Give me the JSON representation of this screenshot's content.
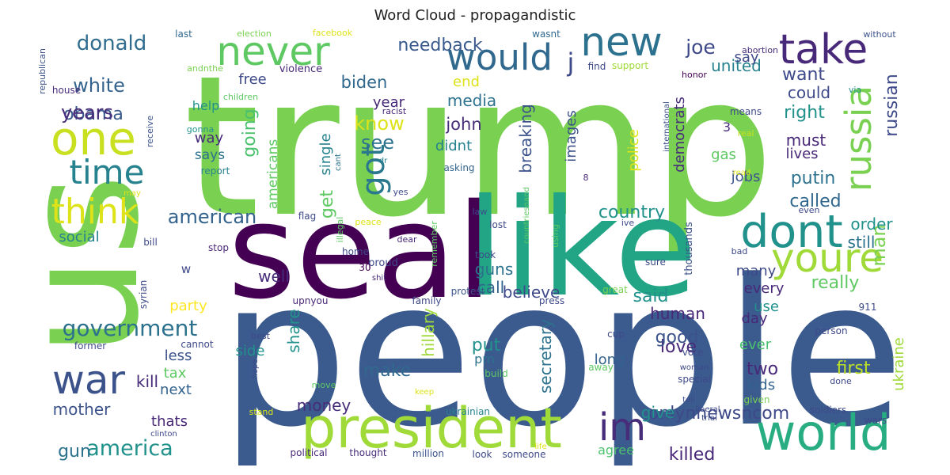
{
  "chart_data": {
    "type": "wordcloud",
    "title": "Word Cloud - propagandistic",
    "background": "#ffffff",
    "palette": [
      "#440154",
      "#3b528b",
      "#21918c",
      "#5ec962",
      "#fde725"
    ],
    "words": [
      {
        "text": "trump",
        "weight": 1.0,
        "color": "#7ad151"
      },
      {
        "text": "people",
        "weight": 0.95,
        "color": "#3b5b8f"
      },
      {
        "text": "us",
        "weight": 0.9,
        "color": "#7ad151"
      },
      {
        "text": "seal",
        "weight": 0.72,
        "color": "#440154"
      },
      {
        "text": "like",
        "weight": 0.7,
        "color": "#21a585"
      },
      {
        "text": "president",
        "weight": 0.4,
        "color": "#a0da39"
      },
      {
        "text": "world",
        "weight": 0.4,
        "color": "#27ad81"
      },
      {
        "text": "one",
        "weight": 0.38,
        "color": "#c8e020"
      },
      {
        "text": "dont",
        "weight": 0.36,
        "color": "#21918c"
      },
      {
        "text": "youre",
        "weight": 0.34,
        "color": "#a0da39"
      },
      {
        "text": "take",
        "weight": 0.34,
        "color": "#482878"
      },
      {
        "text": "new",
        "weight": 0.33,
        "color": "#2c728e"
      },
      {
        "text": "never",
        "weight": 0.32,
        "color": "#5ec962"
      },
      {
        "text": "would",
        "weight": 0.31,
        "color": "#31688e"
      },
      {
        "text": "war",
        "weight": 0.3,
        "color": "#3b528b"
      },
      {
        "text": "time",
        "weight": 0.3,
        "color": "#26828e"
      },
      {
        "text": "think",
        "weight": 0.3,
        "color": "#dde318"
      },
      {
        "text": "russia",
        "weight": 0.3,
        "color": "#7ad151"
      },
      {
        "text": "im",
        "weight": 0.28,
        "color": "#472c7a"
      },
      {
        "text": "got",
        "weight": 0.27,
        "color": "#2a788e"
      },
      {
        "text": "j",
        "weight": 0.2,
        "color": "#3e4989"
      },
      {
        "text": "government",
        "weight": 0.2,
        "color": "#2c728e"
      },
      {
        "text": "america",
        "weight": 0.18,
        "color": "#21918c"
      },
      {
        "text": "donald",
        "weight": 0.18,
        "color": "#2f6c8e"
      },
      {
        "text": "joe",
        "weight": 0.17,
        "color": "#3e4989"
      },
      {
        "text": "white",
        "weight": 0.17,
        "color": "#33638d"
      },
      {
        "text": "american",
        "weight": 0.17,
        "color": "#33638d"
      },
      {
        "text": "man",
        "weight": 0.17,
        "color": "#7ad151"
      },
      {
        "text": "obama",
        "weight": 0.16,
        "color": "#38598c"
      },
      {
        "text": "know",
        "weight": 0.16,
        "color": "#dde318"
      },
      {
        "text": "see",
        "weight": 0.16,
        "color": "#2c728e"
      },
      {
        "text": "years",
        "weight": 0.15,
        "color": "#472c7a"
      },
      {
        "text": "needback",
        "weight": 0.15,
        "color": "#38598c"
      },
      {
        "text": "going",
        "weight": 0.15,
        "color": "#4ac16d"
      },
      {
        "text": "russian",
        "weight": 0.15,
        "color": "#3e4989"
      },
      {
        "text": "want",
        "weight": 0.15,
        "color": "#3e4989"
      },
      {
        "text": "make",
        "weight": 0.15,
        "color": "#31688e"
      },
      {
        "text": "killed",
        "weight": 0.15,
        "color": "#482878"
      },
      {
        "text": "onlynnewsncom",
        "weight": 0.15,
        "color": "#3e4989"
      },
      {
        "text": "first",
        "weight": 0.15,
        "color": "#bddf26"
      },
      {
        "text": "gun",
        "weight": 0.14,
        "color": "#2c728e"
      },
      {
        "text": "biden",
        "weight": 0.14,
        "color": "#31688e"
      },
      {
        "text": "united",
        "weight": 0.14,
        "color": "#26828e"
      },
      {
        "text": "right",
        "weight": 0.14,
        "color": "#21918c"
      },
      {
        "text": "called",
        "weight": 0.14,
        "color": "#31688e"
      },
      {
        "text": "putin",
        "weight": 0.14,
        "color": "#2c728e"
      },
      {
        "text": "really",
        "weight": 0.14,
        "color": "#5ec962"
      },
      {
        "text": "said",
        "weight": 0.14,
        "color": "#21918c"
      },
      {
        "text": "country",
        "weight": 0.14,
        "color": "#21918c"
      },
      {
        "text": "love",
        "weight": 0.14,
        "color": "#482878"
      },
      {
        "text": "good",
        "weight": 0.14,
        "color": "#3b528b"
      },
      {
        "text": "two",
        "weight": 0.14,
        "color": "#482878"
      },
      {
        "text": "put",
        "weight": 0.14,
        "color": "#21918c"
      },
      {
        "text": "get",
        "weight": 0.14,
        "color": "#5ec962"
      },
      {
        "text": "john",
        "weight": 0.13,
        "color": "#472c7a"
      },
      {
        "text": "say",
        "weight": 0.13,
        "color": "#3e4989"
      },
      {
        "text": "could",
        "weight": 0.13,
        "color": "#3e4989"
      },
      {
        "text": "must",
        "weight": 0.13,
        "color": "#482878"
      },
      {
        "text": "order",
        "weight": 0.13,
        "color": "#21918c"
      },
      {
        "text": "still",
        "weight": 0.13,
        "color": "#2c728e"
      },
      {
        "text": "well",
        "weight": 0.13,
        "color": "#472c7a"
      },
      {
        "text": "call",
        "weight": 0.13,
        "color": "#33638d"
      },
      {
        "text": "kill",
        "weight": 0.13,
        "color": "#472c7a"
      },
      {
        "text": "mother",
        "weight": 0.13,
        "color": "#3b528b"
      },
      {
        "text": "money",
        "weight": 0.13,
        "color": "#472c7a"
      },
      {
        "text": "give",
        "weight": 0.13,
        "color": "#21918c"
      },
      {
        "text": "secretary",
        "weight": 0.13,
        "color": "#2c728e"
      },
      {
        "text": "hillary",
        "weight": 0.13,
        "color": "#a0da39"
      },
      {
        "text": "share",
        "weight": 0.13,
        "color": "#21918c"
      },
      {
        "text": "guns",
        "weight": 0.13,
        "color": "#2c728e"
      },
      {
        "text": "believe",
        "weight": 0.13,
        "color": "#3e4989"
      },
      {
        "text": "human",
        "weight": 0.13,
        "color": "#482878"
      },
      {
        "text": "breaking",
        "weight": 0.12,
        "color": "#3b528b"
      },
      {
        "text": "media",
        "weight": 0.12,
        "color": "#2c728e"
      },
      {
        "text": "free",
        "weight": 0.12,
        "color": "#3e4989"
      },
      {
        "text": "gas",
        "weight": 0.12,
        "color": "#5ec962"
      },
      {
        "text": "jobs",
        "weight": 0.12,
        "color": "#3b528b"
      },
      {
        "text": "lives",
        "weight": 0.12,
        "color": "#482878"
      },
      {
        "text": "party",
        "weight": 0.12,
        "color": "#fde725"
      },
      {
        "text": "social",
        "weight": 0.12,
        "color": "#26828e"
      },
      {
        "text": "ever",
        "weight": 0.12,
        "color": "#4ac16d"
      },
      {
        "text": "kids",
        "weight": 0.12,
        "color": "#33638d"
      },
      {
        "text": "long",
        "weight": 0.12,
        "color": "#33638d"
      },
      {
        "text": "day",
        "weight": 0.12,
        "color": "#482878"
      },
      {
        "text": "every",
        "weight": 0.12,
        "color": "#482878"
      },
      {
        "text": "many",
        "weight": 0.12,
        "color": "#3e4989"
      },
      {
        "text": "use",
        "weight": 0.12,
        "color": "#21918c"
      },
      {
        "text": "side",
        "weight": 0.12,
        "color": "#21918c"
      },
      {
        "text": "less",
        "weight": 0.12,
        "color": "#3b528b"
      },
      {
        "text": "tax",
        "weight": 0.12,
        "color": "#5ec962"
      },
      {
        "text": "next",
        "weight": 0.12,
        "color": "#33638d"
      },
      {
        "text": "thats",
        "weight": 0.12,
        "color": "#482878"
      },
      {
        "text": "agree",
        "weight": 0.12,
        "color": "#4ac16d"
      },
      {
        "text": "ukraine",
        "weight": 0.12,
        "color": "#a0da39"
      },
      {
        "text": "year",
        "weight": 0.12,
        "color": "#482878"
      },
      {
        "text": "end",
        "weight": 0.12,
        "color": "#dde318"
      },
      {
        "text": "single",
        "weight": 0.12,
        "color": "#26828e"
      },
      {
        "text": "didnt",
        "weight": 0.12,
        "color": "#26828e"
      },
      {
        "text": "images",
        "weight": 0.12,
        "color": "#3b528b"
      },
      {
        "text": "police",
        "weight": 0.12,
        "color": "#dde318"
      },
      {
        "text": "democrats",
        "weight": 0.12,
        "color": "#472c7a"
      },
      {
        "text": "way",
        "weight": 0.11,
        "color": "#472c7a"
      },
      {
        "text": "says",
        "weight": 0.11,
        "color": "#2c728e"
      },
      {
        "text": "help",
        "weight": 0.11,
        "color": "#21918c"
      },
      {
        "text": "americans",
        "weight": 0.11,
        "color": "#5ec962"
      },
      {
        "text": "pm",
        "weight": 0.11,
        "color": "#2c728e"
      },
      {
        "text": "3",
        "weight": 0.11,
        "color": "#472c7a"
      },
      {
        "text": "w",
        "weight": 0.1,
        "color": "#3e4989"
      },
      {
        "text": "last",
        "weight": 0.08,
        "color": "#31688e"
      },
      {
        "text": "election",
        "weight": 0.07,
        "color": "#7ad151"
      },
      {
        "text": "facebook",
        "weight": 0.07,
        "color": "#dde318"
      },
      {
        "text": "wasnt",
        "weight": 0.07,
        "color": "#31688e"
      },
      {
        "text": "without",
        "weight": 0.07,
        "color": "#3b528b"
      },
      {
        "text": "abortion",
        "weight": 0.07,
        "color": "#472c7a"
      },
      {
        "text": "republican",
        "weight": 0.07,
        "color": "#3b528b"
      },
      {
        "text": "house",
        "weight": 0.07,
        "color": "#472c7a"
      },
      {
        "text": "violence",
        "weight": 0.08,
        "color": "#482878"
      },
      {
        "text": "andnthe",
        "weight": 0.07,
        "color": "#7ad151"
      },
      {
        "text": "find",
        "weight": 0.07,
        "color": "#3e4989"
      },
      {
        "text": "support",
        "weight": 0.07,
        "color": "#a0da39"
      },
      {
        "text": "honor",
        "weight": 0.07,
        "color": "#440154"
      },
      {
        "text": "via",
        "weight": 0.07,
        "color": "#21918c"
      },
      {
        "text": "children",
        "weight": 0.07,
        "color": "#5ec962"
      },
      {
        "text": "racist",
        "weight": 0.07,
        "color": "#482878"
      },
      {
        "text": "receive",
        "weight": 0.07,
        "color": "#3b528b"
      },
      {
        "text": "gonna",
        "weight": 0.07,
        "color": "#21918c"
      },
      {
        "text": "means",
        "weight": 0.07,
        "color": "#3e4989"
      },
      {
        "text": "real",
        "weight": 0.07,
        "color": "#c8e020"
      },
      {
        "text": "international",
        "weight": 0.06,
        "color": "#3b528b"
      },
      {
        "text": "cant",
        "weight": 0.06,
        "color": "#2c728e"
      },
      {
        "text": "report",
        "weight": 0.07,
        "color": "#26828e"
      },
      {
        "text": "asking",
        "weight": 0.07,
        "color": "#33638d"
      },
      {
        "text": "dr",
        "weight": 0.06,
        "color": "#26828e"
      },
      {
        "text": "read",
        "weight": 0.06,
        "color": "#dde318"
      },
      {
        "text": "8",
        "weight": 0.06,
        "color": "#482878"
      },
      {
        "text": "may",
        "weight": 0.06,
        "color": "#dde318"
      },
      {
        "text": "yes",
        "weight": 0.06,
        "color": "#3e4989"
      },
      {
        "text": "law",
        "weight": 0.07,
        "color": "#3e4989"
      },
      {
        "text": "countriesnand",
        "weight": 0.06,
        "color": "#5ec962"
      },
      {
        "text": "even",
        "weight": 0.07,
        "color": "#3e4989"
      },
      {
        "text": "flag",
        "weight": 0.07,
        "color": "#3e4989"
      },
      {
        "text": "peace",
        "weight": 0.06,
        "color": "#dde318"
      },
      {
        "text": "lost",
        "weight": 0.07,
        "color": "#3e4989"
      },
      {
        "text": "ive",
        "weight": 0.06,
        "color": "#3e4989"
      },
      {
        "text": "bill",
        "weight": 0.07,
        "color": "#3e4989"
      },
      {
        "text": "illegal",
        "weight": 0.06,
        "color": "#5ec962"
      },
      {
        "text": "dear",
        "weight": 0.06,
        "color": "#482878"
      },
      {
        "text": "took",
        "weight": 0.07,
        "color": "#3e4989"
      },
      {
        "text": "bad",
        "weight": 0.07,
        "color": "#3e4989"
      },
      {
        "text": "stop",
        "weight": 0.07,
        "color": "#482878"
      },
      {
        "text": "home",
        "weight": 0.07,
        "color": "#3e4989"
      },
      {
        "text": "remember",
        "weight": 0.06,
        "color": "#5ec962"
      },
      {
        "text": "using",
        "weight": 0.06,
        "color": "#5ec962"
      },
      {
        "text": "thousands",
        "weight": 0.07,
        "color": "#3b528b"
      },
      {
        "text": "sure",
        "weight": 0.07,
        "color": "#3e4989"
      },
      {
        "text": "proud",
        "weight": 0.08,
        "color": "#3e4989"
      },
      {
        "text": "30",
        "weight": 0.07,
        "color": "#440154"
      },
      {
        "text": "shit",
        "weight": 0.06,
        "color": "#482878"
      },
      {
        "text": "syrian",
        "weight": 0.07,
        "color": "#3e4989"
      },
      {
        "text": "upnyou",
        "weight": 0.07,
        "color": "#482878"
      },
      {
        "text": "family",
        "weight": 0.07,
        "color": "#3e4989"
      },
      {
        "text": "protest",
        "weight": 0.07,
        "color": "#3b528b"
      },
      {
        "text": "press",
        "weight": 0.07,
        "color": "#3e4989"
      },
      {
        "text": "great",
        "weight": 0.07,
        "color": "#7ad151"
      },
      {
        "text": "911",
        "weight": 0.07,
        "color": "#3e4989"
      },
      {
        "text": "best",
        "weight": 0.06,
        "color": "#3e4989"
      },
      {
        "text": "former",
        "weight": 0.07,
        "color": "#3e4989"
      },
      {
        "text": "cannot",
        "weight": 0.07,
        "color": "#3e4989"
      },
      {
        "text": "cup",
        "weight": 0.07,
        "color": "#3e4989"
      },
      {
        "text": "vote",
        "weight": 0.07,
        "color": "#3e4989"
      },
      {
        "text": "person",
        "weight": 0.07,
        "color": "#3e4989"
      },
      {
        "text": "hope",
        "weight": 0.06,
        "color": "#3e4989"
      },
      {
        "text": "build",
        "weight": 0.07,
        "color": "#5ec962"
      },
      {
        "text": "woman",
        "weight": 0.06,
        "color": "#3e4989"
      },
      {
        "text": "away",
        "weight": 0.07,
        "color": "#5ec962"
      },
      {
        "text": "special",
        "weight": 0.07,
        "color": "#3e4989"
      },
      {
        "text": "done",
        "weight": 0.07,
        "color": "#3e4989"
      },
      {
        "text": "given",
        "weight": 0.07,
        "color": "#7ad151"
      },
      {
        "text": "move",
        "weight": 0.06,
        "color": "#5ec962"
      },
      {
        "text": "keep",
        "weight": 0.06,
        "color": "#dde318"
      },
      {
        "text": "stand",
        "weight": 0.07,
        "color": "#dde318"
      },
      {
        "text": "ukrainian",
        "weight": 0.07,
        "color": "#26828e"
      },
      {
        "text": "tell",
        "weight": 0.06,
        "color": "#3e4989"
      },
      {
        "text": "liberal",
        "weight": 0.06,
        "color": "#3e4989"
      },
      {
        "text": "trial",
        "weight": 0.06,
        "color": "#3e4989"
      },
      {
        "text": "soldiers",
        "weight": 0.07,
        "color": "#3e4989"
      },
      {
        "text": "wars",
        "weight": 0.07,
        "color": "#3e4989"
      },
      {
        "text": "clinton",
        "weight": 0.06,
        "color": "#3e4989"
      },
      {
        "text": "political",
        "weight": 0.07,
        "color": "#482878"
      },
      {
        "text": "thought",
        "weight": 0.07,
        "color": "#472c7a"
      },
      {
        "text": "million",
        "weight": 0.07,
        "color": "#3b528b"
      },
      {
        "text": "look",
        "weight": 0.07,
        "color": "#3e4989"
      },
      {
        "text": "someone",
        "weight": 0.07,
        "color": "#3e4989"
      },
      {
        "text": "life",
        "weight": 0.06,
        "color": "#dde318"
      }
    ]
  }
}
